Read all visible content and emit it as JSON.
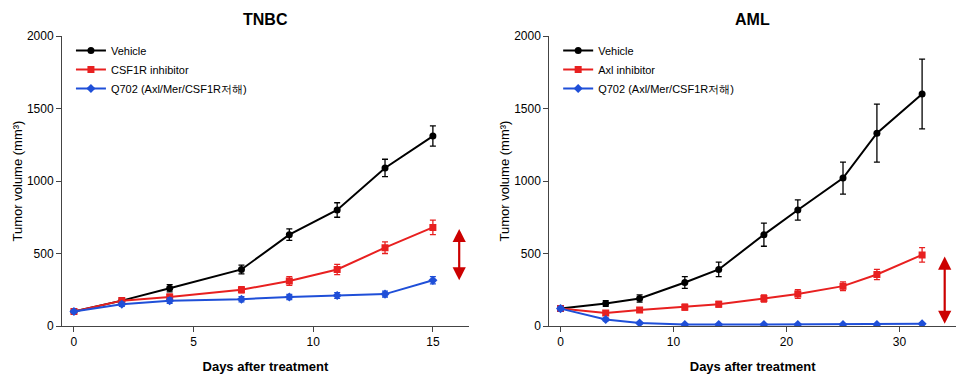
{
  "chart_data": [
    {
      "type": "line",
      "title": "TNBC",
      "x_label": "Days after treatment",
      "y_label": "Tumor volume (mm³)",
      "xlim": [
        -0.5,
        16.5
      ],
      "xticks": [
        0,
        5,
        10,
        15
      ],
      "ylim": [
        0,
        2000
      ],
      "yticks": [
        0,
        500,
        1000,
        1500,
        2000
      ],
      "grid": false,
      "legend": "upper left",
      "x": [
        0,
        2,
        4,
        7,
        9,
        11,
        13,
        15
      ],
      "series": [
        {
          "name": "Vehicle",
          "color": "#000000",
          "marker": "circle",
          "values": [
            100,
            175,
            260,
            390,
            630,
            800,
            1090,
            1310
          ],
          "errors": [
            10,
            20,
            25,
            30,
            40,
            50,
            60,
            70
          ]
        },
        {
          "name": "CSF1R inhibitor",
          "color": "#e82020",
          "marker": "square",
          "values": [
            100,
            175,
            200,
            250,
            310,
            390,
            540,
            680
          ],
          "errors": [
            10,
            18,
            20,
            22,
            30,
            35,
            40,
            50
          ]
        },
        {
          "name": "Q702 (Axl/Mer/CSF1R저해)",
          "color": "#1f4fd8",
          "marker": "diamond",
          "values": [
            100,
            150,
            175,
            185,
            200,
            210,
            220,
            315
          ],
          "errors": [
            10,
            15,
            18,
            18,
            18,
            20,
            20,
            25
          ]
        }
      ],
      "arrows": [
        {
          "x": 16.1,
          "top": 680,
          "bottom": 315,
          "color": "#cc0000"
        }
      ]
    },
    {
      "type": "line",
      "title": "AML",
      "x_label": "Days after treatment",
      "y_label": "Tumor volume (mm³)",
      "xlim": [
        -1,
        35
      ],
      "xticks": [
        0,
        10,
        20,
        30
      ],
      "ylim": [
        0,
        2000
      ],
      "yticks": [
        0,
        500,
        1000,
        1500,
        2000
      ],
      "grid": false,
      "legend": "upper left",
      "x": [
        0,
        4,
        7,
        11,
        14,
        18,
        21,
        25,
        28,
        32
      ],
      "series": [
        {
          "name": "Vehicle",
          "color": "#000000",
          "marker": "circle",
          "values": [
            120,
            155,
            190,
            300,
            390,
            630,
            800,
            1020,
            1330,
            1600
          ],
          "errors": [
            15,
            20,
            25,
            40,
            50,
            80,
            70,
            110,
            200,
            240
          ]
        },
        {
          "name": "Axl inhibitor",
          "color": "#e82020",
          "marker": "square",
          "values": [
            120,
            90,
            110,
            130,
            150,
            190,
            220,
            275,
            355,
            490
          ],
          "errors": [
            15,
            15,
            15,
            20,
            20,
            25,
            30,
            30,
            35,
            50
          ]
        },
        {
          "name": "Q702 (Axl/Mer/CSF1R저해)",
          "color": "#1f4fd8",
          "marker": "diamond",
          "values": [
            120,
            45,
            20,
            10,
            10,
            10,
            10,
            10,
            10,
            15
          ],
          "errors": [
            15,
            10,
            5,
            5,
            5,
            5,
            5,
            5,
            5,
            5
          ]
        }
      ],
      "arrows": [
        {
          "x": 34.0,
          "top": 490,
          "bottom": 15,
          "color": "#cc0000"
        }
      ]
    }
  ]
}
